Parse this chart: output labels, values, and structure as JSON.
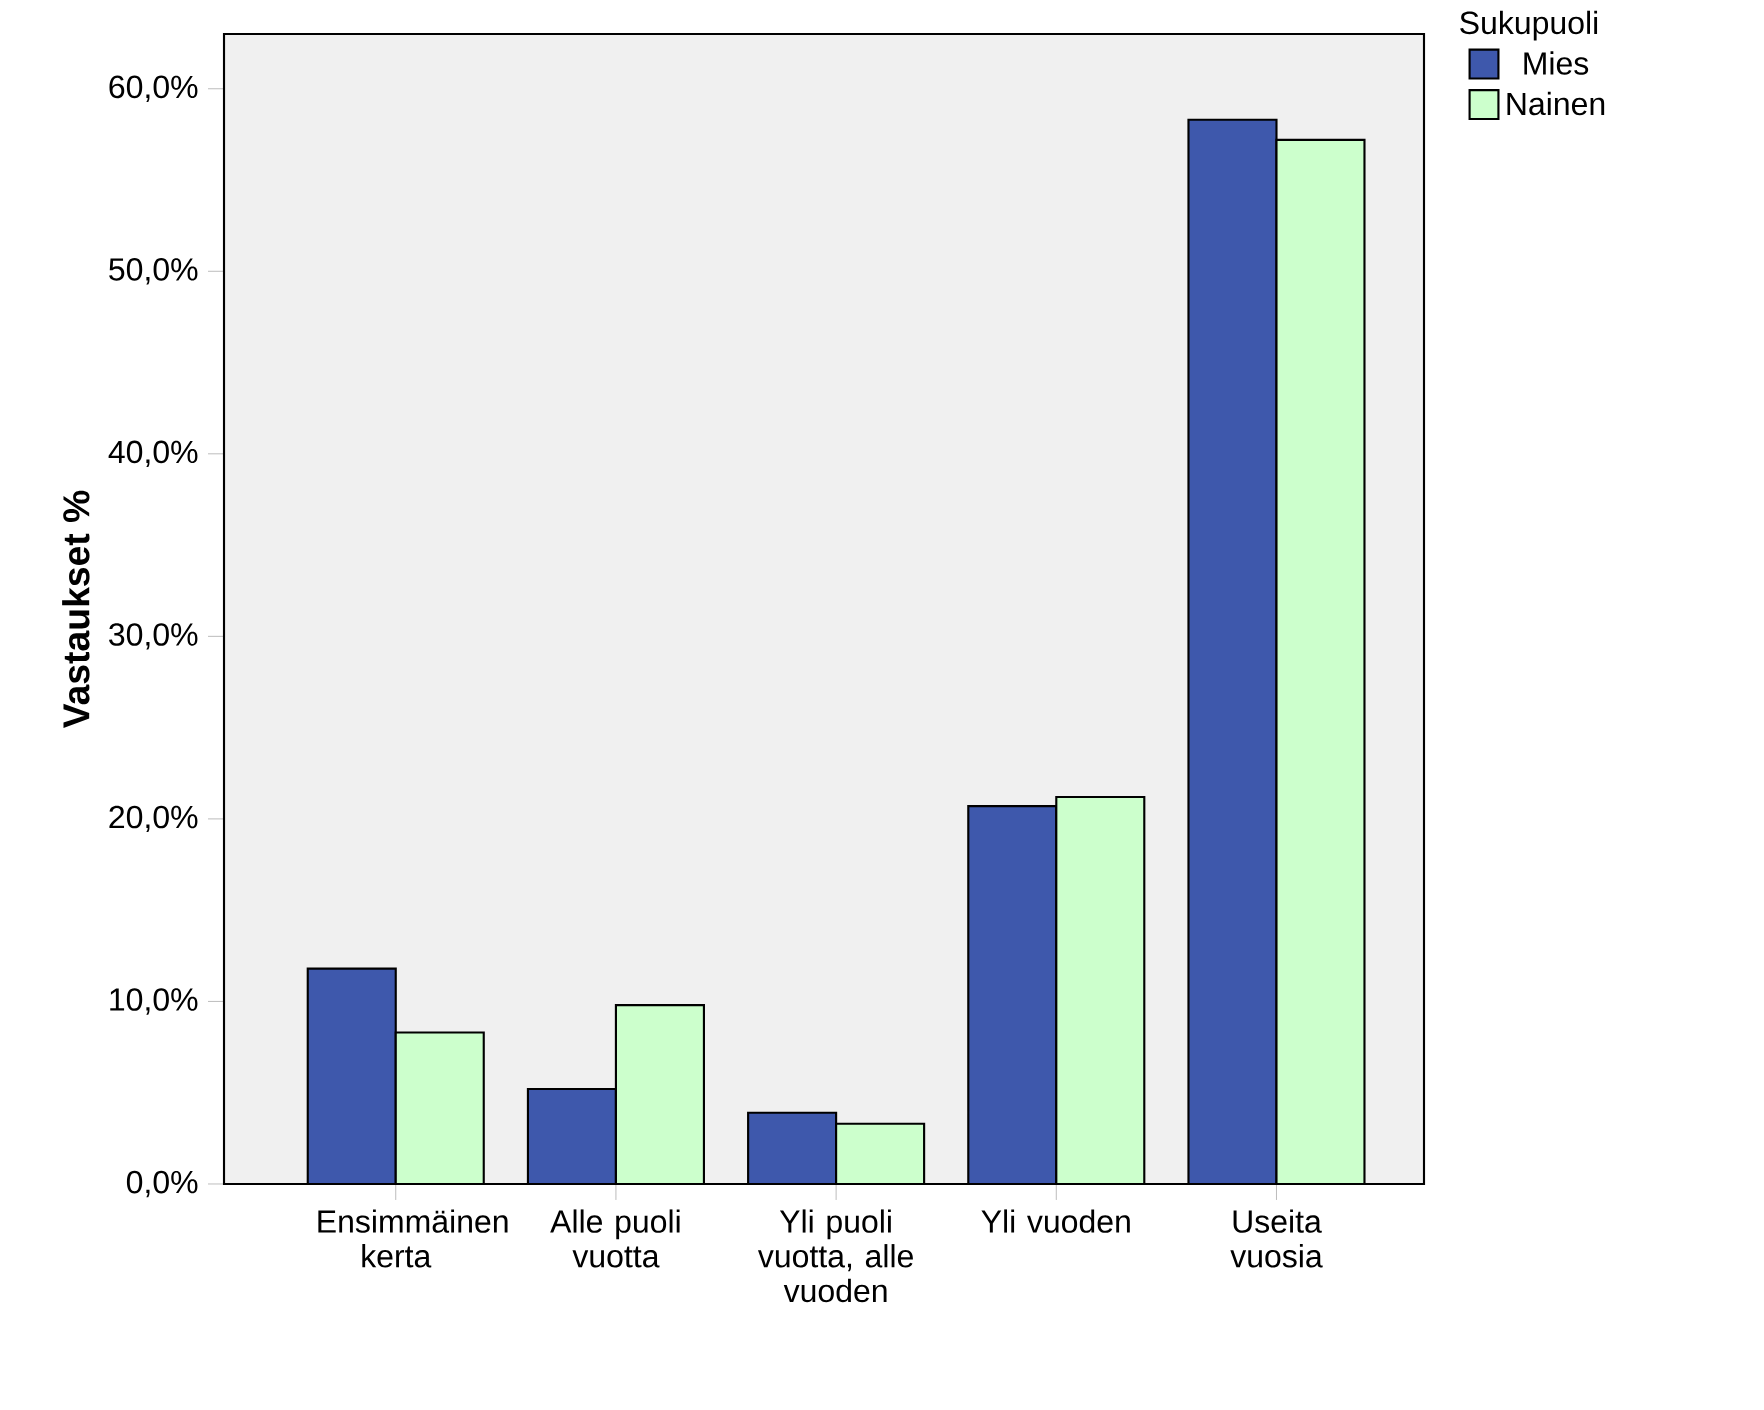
{
  "chart_data": {
    "type": "bar",
    "ylabel": "Vastaukset %",
    "legend_title": "Sukupuoli",
    "legend": "top right",
    "grid": false,
    "categories": [
      "Ensimmäinen kerta",
      "Alle puoli vuotta",
      "Yli puoli vuotta, alle vuoden",
      "Yli vuoden",
      "Useita vuosia"
    ],
    "series": [
      {
        "name": "Mies",
        "color": "#3e58ac",
        "values": [
          11.8,
          5.2,
          3.9,
          20.7,
          58.3
        ]
      },
      {
        "name": "Nainen",
        "color": "#ccffcc",
        "values": [
          8.3,
          9.8,
          3.3,
          21.2,
          57.2
        ]
      }
    ],
    "ylim": [
      0,
      63
    ],
    "yticks": [
      {
        "value": 0,
        "label": "0,0%"
      },
      {
        "value": 10,
        "label": "10,0%"
      },
      {
        "value": 20,
        "label": "20,0%"
      },
      {
        "value": 30,
        "label": "30,0%"
      },
      {
        "value": 40,
        "label": "40,0%"
      },
      {
        "value": 50,
        "label": "50,0%"
      },
      {
        "value": 60,
        "label": "60,0%"
      }
    ]
  }
}
